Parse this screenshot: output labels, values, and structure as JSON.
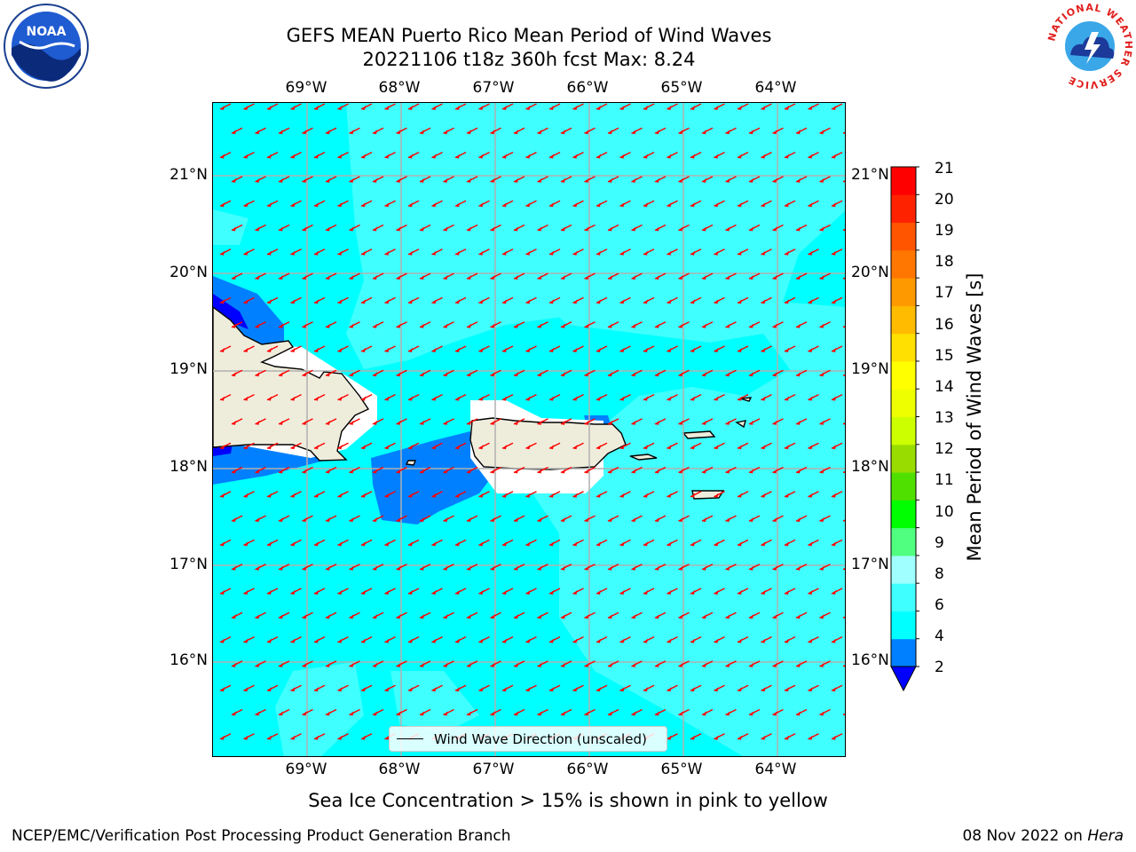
{
  "header": {
    "title_line1": "GEFS MEAN Puerto Rico Mean Period of Wind Waves",
    "title_line2": "20221106 t18z 360h fcst   Max: 8.24"
  },
  "map": {
    "lon_labels": [
      "69°W",
      "68°W",
      "67°W",
      "66°W",
      "65°W",
      "64°W"
    ],
    "lat_labels": [
      "21°N",
      "20°N",
      "19°N",
      "18°N",
      "17°N",
      "16°N"
    ],
    "legend_label": "Wind Wave Direction (unscaled)",
    "colors": {
      "ocean_background": "#00ffff",
      "land": "#eeeddc",
      "arrow": "#ff0000",
      "grid": "#b0b0b0"
    }
  },
  "colorbar": {
    "title": "Mean Period of Wind Waves [s]",
    "tick_labels": [
      "21",
      "20",
      "19",
      "18",
      "17",
      "16",
      "15",
      "14",
      "13",
      "12",
      "11",
      "10",
      "9",
      "8",
      "6",
      "4",
      "2"
    ],
    "colors_bottom_to_top": [
      "#0080ff",
      "#00ffff",
      "#40ffff",
      "#a0ffff",
      "#50ff80",
      "#00ff00",
      "#50e000",
      "#99dd00",
      "#ccff00",
      "#eeff00",
      "#ffff00",
      "#ffe000",
      "#ffbb00",
      "#ff9900",
      "#ff7700",
      "#ff5500",
      "#ff2200",
      "#ff0000"
    ],
    "under_color": "#0000ff"
  },
  "subtitle": "Sea Ice Concentration > 15% is shown in pink to yellow",
  "footer": {
    "left": "NCEP/EMC/Verification Post Processing Product Generation Branch",
    "right_date": "08 Nov 2022 on ",
    "right_host": "Hera"
  },
  "logos": {
    "noaa": {
      "text": "NOAA",
      "icon": "noaa-logo-icon"
    },
    "nws": {
      "text": "NATIONAL WEATHER SERVICE",
      "icon": "nws-logo-icon"
    }
  }
}
